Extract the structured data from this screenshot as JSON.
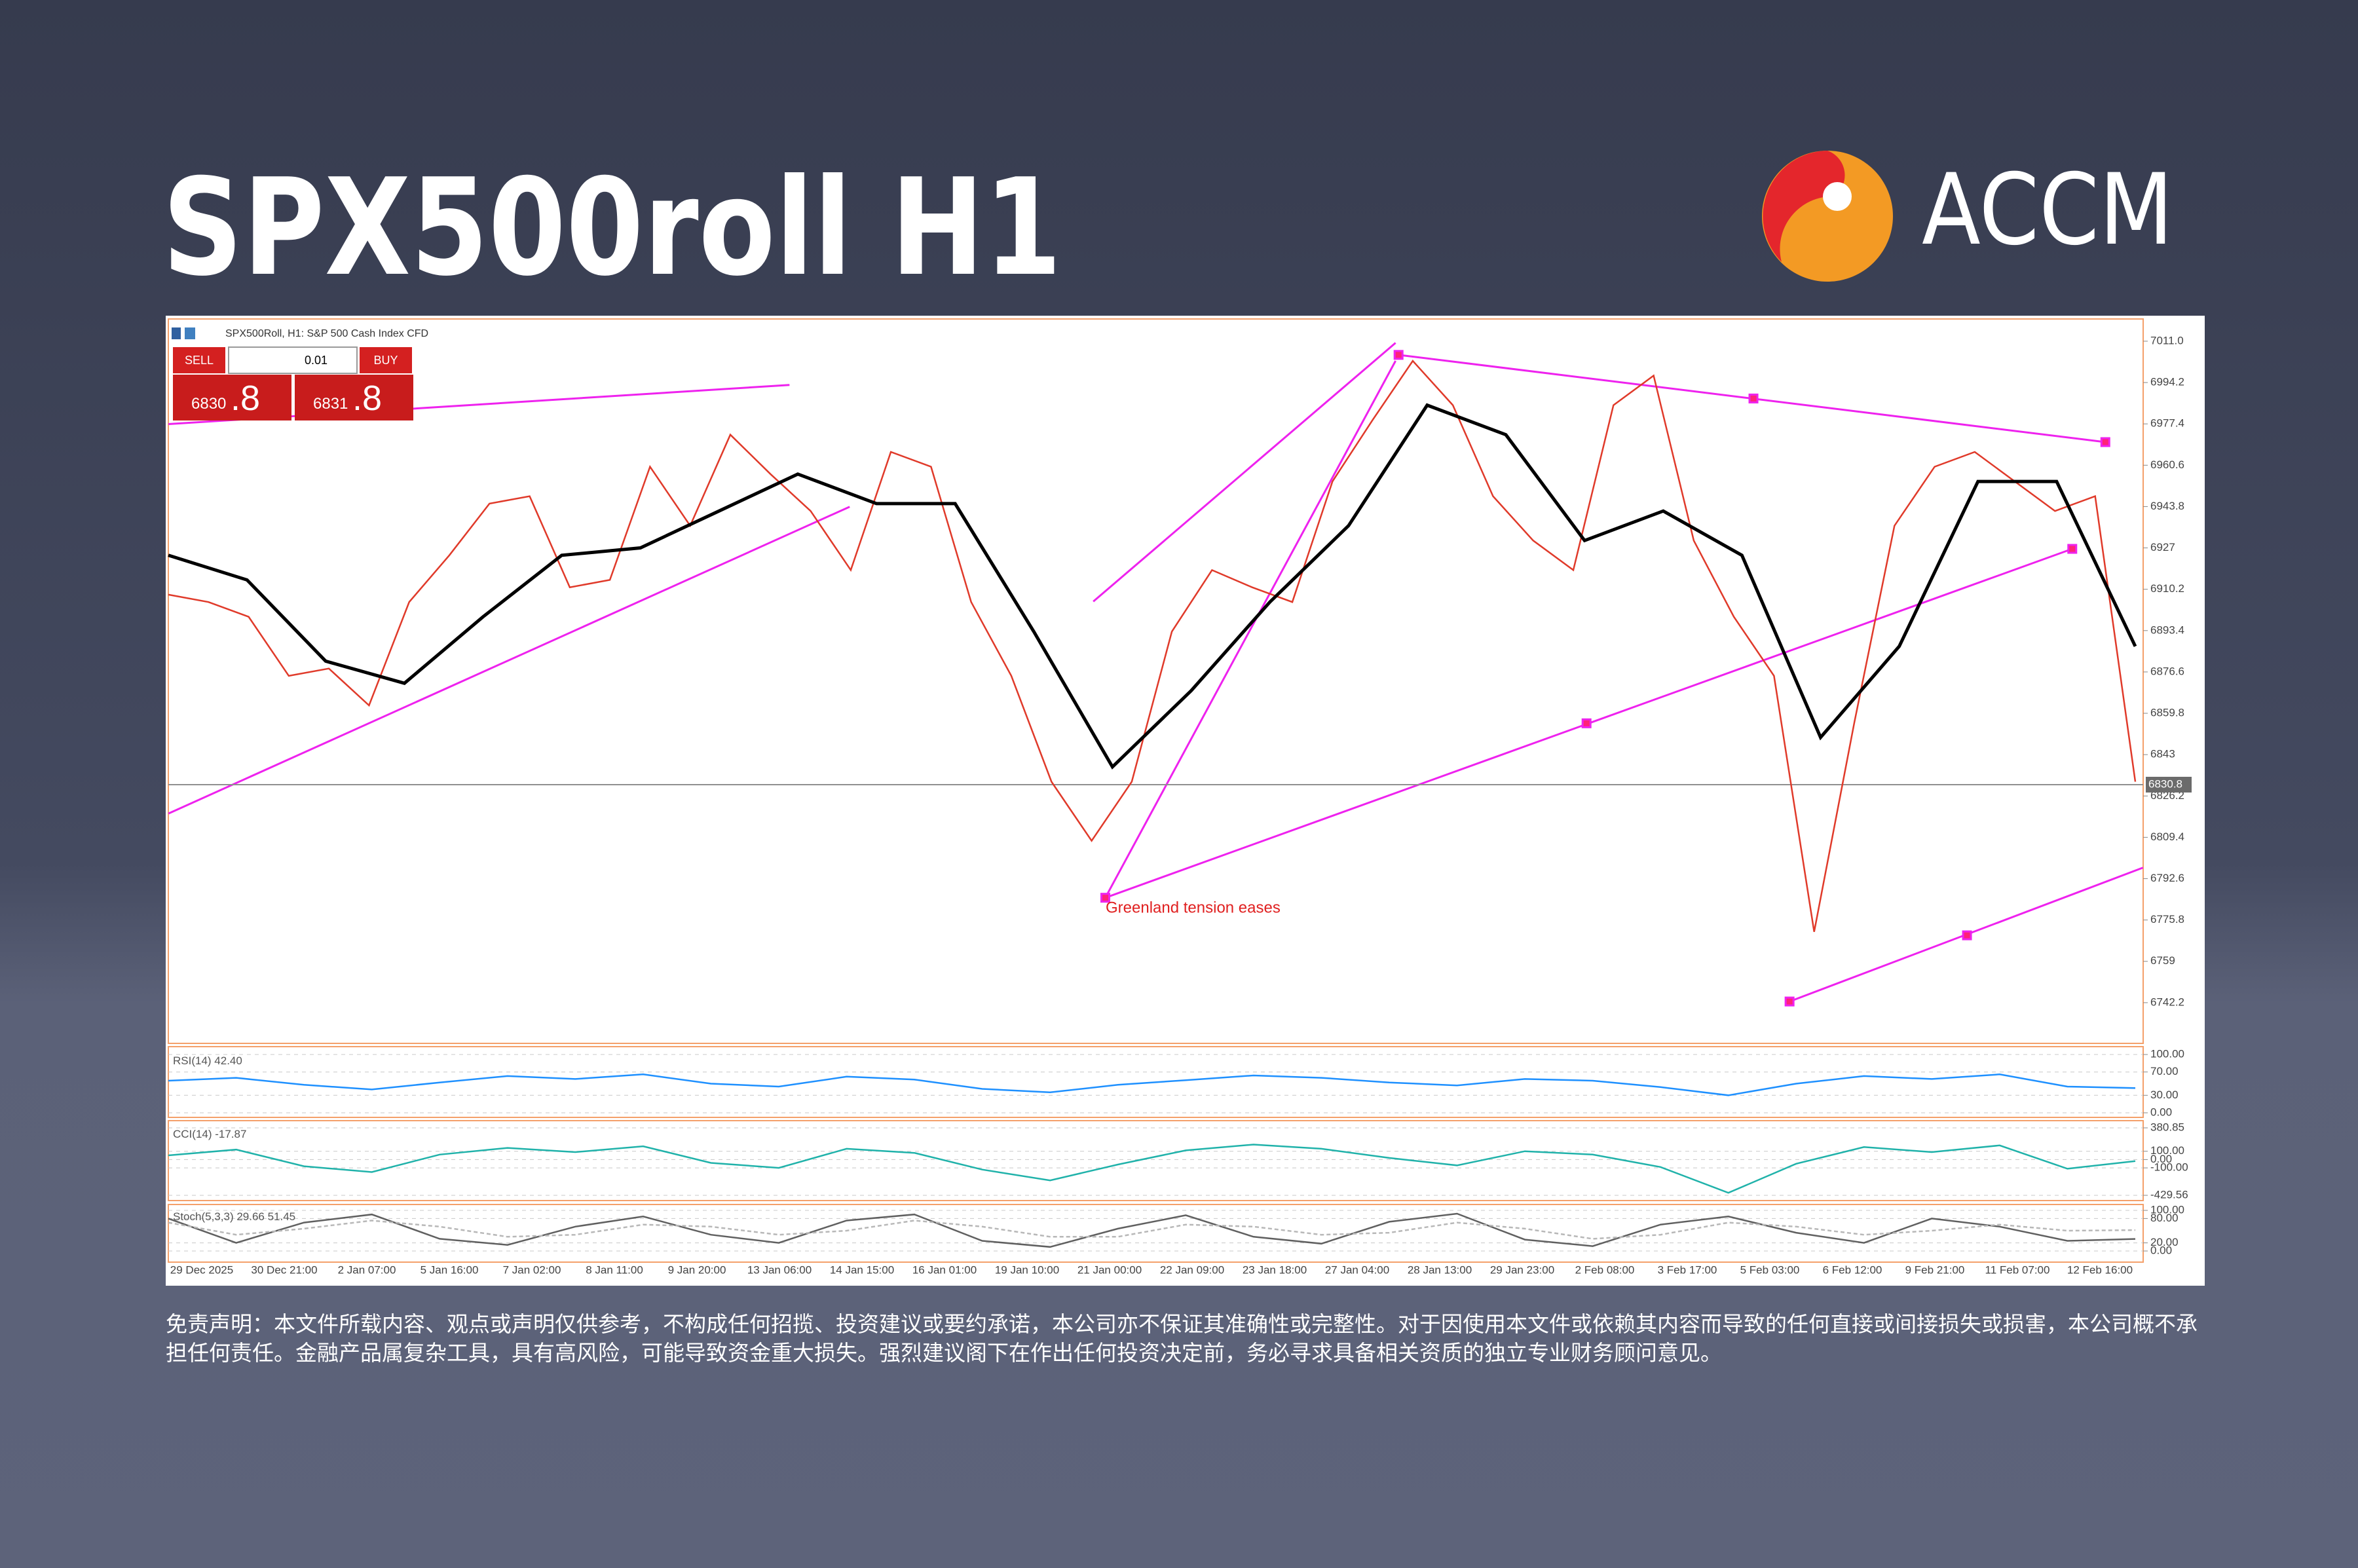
{
  "header": {
    "title": "SPX500roll H1",
    "brand": "ACCM"
  },
  "trade_panel": {
    "sell": "SELL",
    "buy": "BUY",
    "volume": "0.01",
    "bid": "6830",
    "bid_fraction": ".8",
    "ask": "6831",
    "ask_fraction": ".8"
  },
  "chart_data": [
    {
      "type": "line",
      "title": "SPX500Roll, H1:  S&P 500 Cash Index CFD",
      "x_labels": [
        "29 Dec 2025",
        "30 Dec 21:00",
        "2 Jan 07:00",
        "5 Jan 16:00",
        "7 Jan 02:00",
        "8 Jan 11:00",
        "9 Jan 20:00",
        "13 Jan 06:00",
        "14 Jan 15:00",
        "16 Jan 01:00",
        "19 Jan 10:00",
        "21 Jan 00:00",
        "22 Jan 09:00",
        "23 Jan 18:00",
        "27 Jan 04:00",
        "28 Jan 13:00",
        "29 Jan 23:00",
        "2 Feb 08:00",
        "3 Feb 17:00",
        "5 Feb 03:00",
        "6 Feb 12:00",
        "9 Feb 21:00",
        "11 Feb 07:00",
        "12 Feb 16:00"
      ],
      "series": [
        {
          "color": "#e03a2a",
          "values": [
            6908,
            6905,
            6899,
            6875,
            6878,
            6863,
            6905,
            6924,
            6945,
            6948,
            6911,
            6914,
            6960,
            6936,
            6973,
            6957,
            6942,
            6918,
            6966,
            6960,
            6905,
            6875,
            6832,
            6808,
            6832,
            6893,
            6918,
            6911,
            6905,
            6954,
            6979,
            7003,
            6985,
            6948,
            6930,
            6918,
            6985,
            6997,
            6930,
            6899,
            6875,
            6771,
            6856,
            6936,
            6960,
            6966,
            6954,
            6942,
            6948,
            6832
          ]
        },
        {
          "color": "#000000",
          "values": [
            6924,
            6914,
            6881,
            6872,
            6899,
            6924,
            6927,
            6942,
            6957,
            6945,
            6945,
            6893,
            6838,
            6869,
            6905,
            6936,
            6985,
            6973,
            6930,
            6942,
            6924,
            6850,
            6887,
            6954,
            6954,
            6887
          ]
        }
      ],
      "current_price": 6830.8,
      "annotation": "Greenland tension eases",
      "ylim": [
        6726.2,
        7019.5
      ],
      "yticks": [
        {
          "value": 7011,
          "label": "7011.0"
        },
        6994.2,
        6977.4,
        6960.6,
        6943.8,
        6927,
        6910.2,
        6893.4,
        6876.6,
        6859.8,
        6843,
        6826.2,
        6809.4,
        6792.6,
        6775.8,
        6759,
        6742.2
      ],
      "grid": false
    },
    {
      "type": "line",
      "title": "RSI(14) 42.40",
      "series": [
        {
          "color": "#1e90ff",
          "values": [
            55,
            60,
            48,
            40,
            52,
            63,
            58,
            66,
            50,
            45,
            62,
            57,
            41,
            35,
            48,
            56,
            64,
            60,
            52,
            47,
            58,
            55,
            44,
            30,
            50,
            63,
            58,
            66,
            45,
            42.4
          ]
        }
      ],
      "ylim": [
        0,
        100
      ],
      "yticks": [
        {
          "value": 100,
          "label": "100.00"
        },
        {
          "value": 70,
          "label": "70.00"
        },
        {
          "value": 30,
          "label": "30.00"
        },
        {
          "value": 0,
          "label": "0.00"
        }
      ],
      "grid": true
    },
    {
      "type": "line",
      "title": "CCI(14) -17.87",
      "series": [
        {
          "color": "#20b2aa",
          "values": [
            50,
            120,
            -80,
            -150,
            60,
            140,
            90,
            160,
            -40,
            -100,
            130,
            80,
            -120,
            -250,
            -60,
            110,
            180,
            130,
            20,
            -70,
            100,
            60,
            -90,
            -400,
            -50,
            150,
            90,
            170,
            -110,
            -17.87
          ]
        }
      ],
      "ylim": [
        -429.56,
        380.85
      ],
      "yticks": [
        {
          "value": 380.85,
          "label": "380.85"
        },
        {
          "value": 100,
          "label": "100.00"
        },
        {
          "value": 0,
          "label": "0.00"
        },
        {
          "value": -100,
          "label": "-100.00"
        },
        {
          "value": -429.56,
          "label": "-429.56"
        }
      ],
      "grid": true
    },
    {
      "type": "line",
      "title": "Stoch(5,3,3) 29.66 51.45",
      "series": [
        {
          "color": "#606060",
          "values": [
            80,
            20,
            70,
            90,
            30,
            15,
            60,
            85,
            40,
            20,
            75,
            90,
            25,
            10,
            55,
            88,
            35,
            18,
            72,
            92,
            28,
            12,
            65,
            85,
            45,
            20,
            80,
            60,
            25,
            29.66
          ]
        },
        {
          "color": "#b8b8b8",
          "values": [
            70,
            40,
            55,
            75,
            60,
            35,
            40,
            65,
            60,
            40,
            50,
            75,
            60,
            35,
            35,
            65,
            60,
            40,
            45,
            70,
            55,
            30,
            40,
            70,
            60,
            40,
            50,
            65,
            50,
            51.45
          ]
        }
      ],
      "ylim": [
        0,
        100
      ],
      "yticks": [
        {
          "value": 100,
          "label": "100.00"
        },
        {
          "value": 80,
          "label": "80.00"
        },
        {
          "value": 20,
          "label": "20.00"
        },
        {
          "value": 0,
          "label": "0.00"
        }
      ],
      "grid": true
    }
  ],
  "disclaimer": "免责声明：本文件所载内容、观点或声明仅供参考，不构成任何招揽、投资建议或要约承诺，本公司亦不保证其准确性或完整性。对于因使用本文件或依赖其内容而导致的任何直接或间接损失或损害，本公司概不承担任何责任。金融产品属复杂工具，具有高风险，可能导致资金重大损失。强烈建议阁下在作出任何投资决定前，务必寻求具备相关资质的独立专业财务顾问意见。"
}
